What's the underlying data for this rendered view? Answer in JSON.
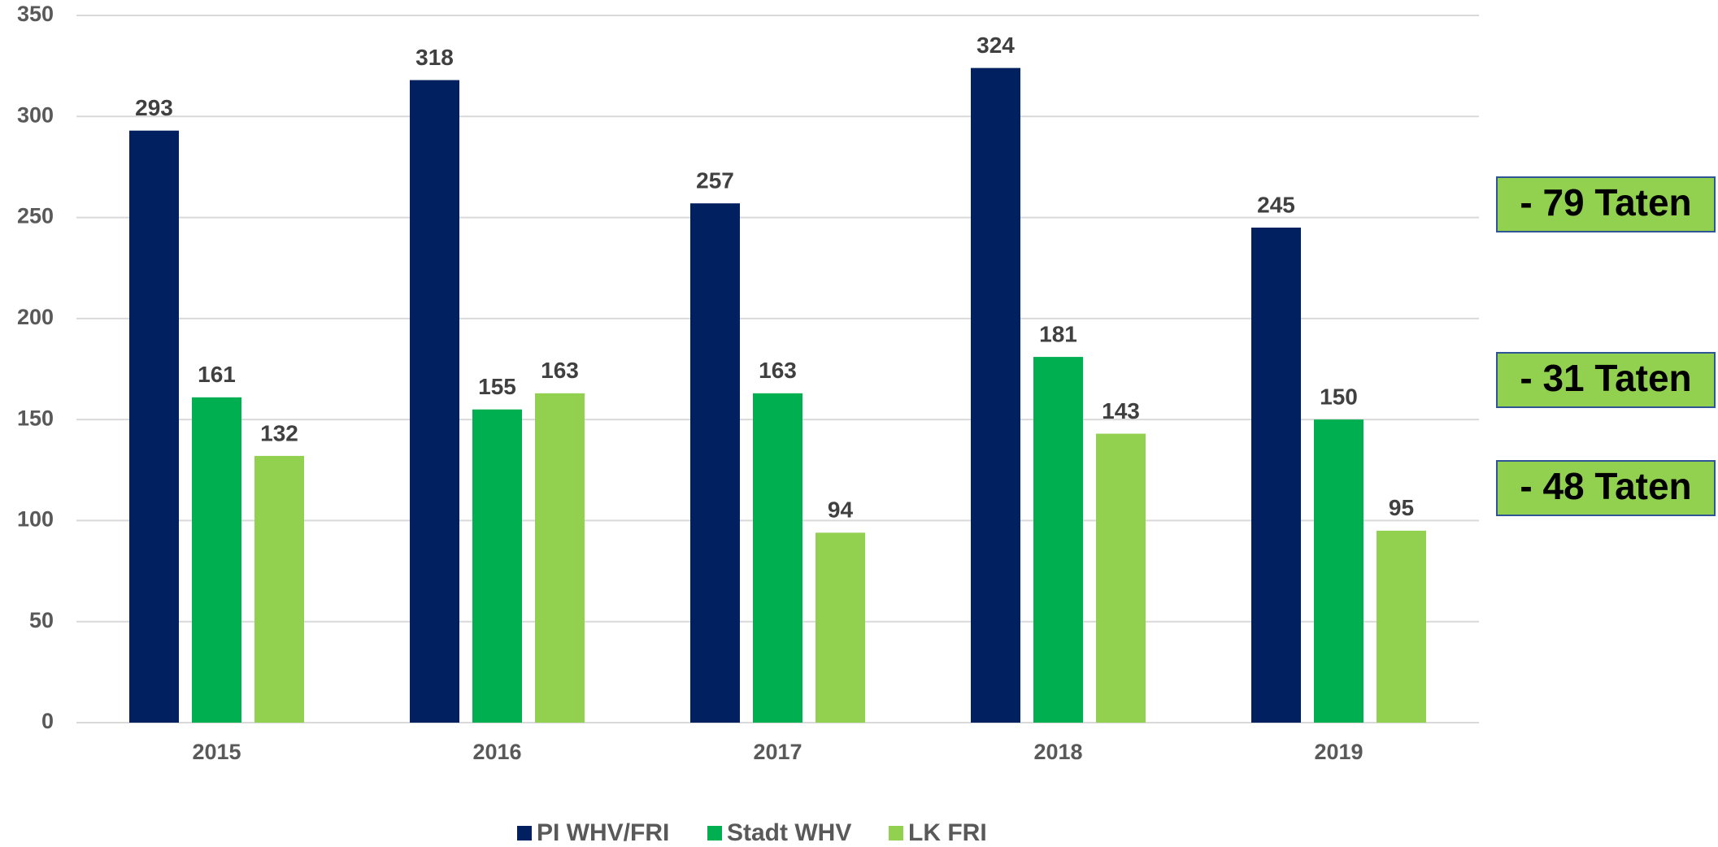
{
  "chart_data": {
    "type": "bar",
    "categories": [
      "2015",
      "2016",
      "2017",
      "2018",
      "2019"
    ],
    "series": [
      {
        "name": "PI WHV/FRI",
        "color": "#002060",
        "values": [
          293,
          318,
          257,
          324,
          245
        ]
      },
      {
        "name": "Stadt WHV",
        "color": "#00b050",
        "values": [
          161,
          155,
          163,
          181,
          150
        ]
      },
      {
        "name": "LK FRI",
        "color": "#92d050",
        "values": [
          132,
          163,
          94,
          143,
          95
        ]
      }
    ],
    "ylim": [
      0,
      350
    ],
    "yticks": [
      0,
      50,
      100,
      150,
      200,
      250,
      300,
      350
    ],
    "grid": true,
    "legend": "bottom",
    "annotations": [
      "- 79 Taten",
      "- 31 Taten",
      "- 48 Taten"
    ]
  }
}
